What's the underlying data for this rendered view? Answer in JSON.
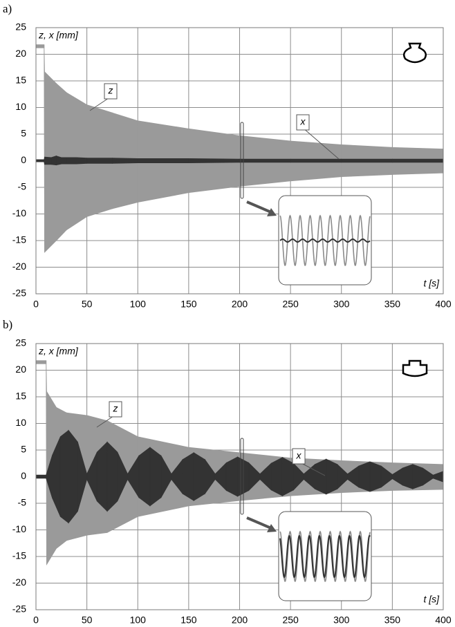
{
  "chart_data": [
    {
      "type": "range",
      "label": "a)",
      "ylabel": "z, x [mm]",
      "xlabel": "t [s]",
      "xlim": [
        0,
        400
      ],
      "xticks": [
        0,
        50,
        100,
        150,
        200,
        250,
        300,
        350,
        400
      ],
      "ylim": [
        -25,
        25
      ],
      "yticks": [
        -25,
        -20,
        -15,
        -10,
        -5,
        0,
        5,
        10,
        15,
        20,
        25
      ],
      "grid": true,
      "series": [
        {
          "name": "z",
          "color": "#9a9a9a",
          "x": [
            0,
            8,
            8.5,
            20,
            30,
            50,
            75,
            100,
            150,
            200,
            250,
            300,
            350,
            400
          ],
          "high": [
            21.8,
            21.8,
            16.7,
            14.5,
            12.8,
            10.5,
            9,
            7.5,
            6,
            4.7,
            3.7,
            3,
            2.5,
            2.2
          ],
          "low": [
            21.2,
            21.2,
            -17.2,
            -15,
            -13,
            -10.5,
            -9,
            -7.8,
            -6,
            -4.8,
            -3.8,
            -3,
            -2.6,
            -2.3
          ]
        },
        {
          "name": "x",
          "color": "#333333",
          "x": [
            0,
            8,
            8.5,
            15,
            20,
            25,
            30,
            40,
            50,
            75,
            100,
            150,
            200,
            250,
            300,
            350,
            400
          ],
          "high": [
            0.2,
            0.2,
            0.7,
            0.6,
            0.9,
            0.6,
            0.6,
            0.6,
            0.5,
            0.5,
            0.4,
            0.4,
            0.3,
            0.3,
            0.3,
            0.3,
            0.3
          ],
          "low": [
            -0.2,
            -0.2,
            -0.7,
            -0.7,
            -0.8,
            -0.6,
            -0.6,
            -0.6,
            -0.5,
            -0.5,
            -0.4,
            -0.4,
            -0.3,
            -0.3,
            -0.3,
            -0.3,
            -0.3
          ]
        }
      ]
    },
    {
      "type": "range",
      "label": "b)",
      "ylabel": "z, x [mm]",
      "xlabel": "t [s]",
      "xlim": [
        0,
        400
      ],
      "xticks": [
        0,
        50,
        100,
        150,
        200,
        250,
        300,
        350,
        400
      ],
      "ylim": [
        -25,
        25
      ],
      "yticks": [
        -25,
        -20,
        -15,
        -10,
        -5,
        0,
        5,
        10,
        15,
        20,
        25
      ],
      "grid": true,
      "series": [
        {
          "name": "z",
          "color": "#9a9a9a",
          "x": [
            0,
            10,
            10.5,
            20,
            30,
            50,
            70,
            100,
            150,
            200,
            250,
            300,
            350,
            400
          ],
          "high": [
            21.8,
            21.8,
            16,
            13,
            12,
            11.5,
            10.5,
            7.5,
            5.5,
            4.5,
            3.5,
            3,
            2.6,
            2.3
          ],
          "low": [
            21.2,
            21.2,
            -16.5,
            -13.5,
            -12,
            -11,
            -10.5,
            -7.5,
            -5.5,
            -4.5,
            -3.6,
            -3,
            -2.6,
            -2.4
          ]
        },
        {
          "name": "x",
          "color": "#333333",
          "x": [
            0,
            10,
            16,
            24,
            32,
            41,
            50,
            60,
            70,
            80,
            90,
            101,
            112,
            123,
            133,
            144,
            155,
            166,
            176,
            187,
            198,
            209,
            220,
            231,
            242,
            253,
            263,
            274,
            285,
            296,
            306,
            317,
            328,
            339,
            350,
            360,
            370,
            380,
            390,
            400
          ],
          "high": [
            0.3,
            0.3,
            4,
            7.5,
            8.7,
            6.5,
            0.5,
            4.6,
            6.5,
            4.6,
            0.5,
            3.9,
            5.5,
            3.9,
            0.5,
            3.2,
            4.5,
            3.2,
            0.5,
            2.6,
            3.7,
            2.6,
            0.5,
            2.5,
            3.6,
            2.5,
            0.5,
            2.3,
            3.3,
            2.3,
            0.5,
            2,
            2.8,
            2,
            0.4,
            1.6,
            2.3,
            1.6,
            0.3,
            1
          ],
          "low": [
            -0.3,
            -0.3,
            -4,
            -7.5,
            -8.7,
            -6.5,
            -0.5,
            -4.6,
            -6.5,
            -4.6,
            -0.5,
            -3.9,
            -5.5,
            -3.9,
            -0.5,
            -3.2,
            -4.5,
            -3.2,
            -0.5,
            -2.6,
            -3.7,
            -2.6,
            -0.5,
            -2.5,
            -3.6,
            -2.5,
            -0.5,
            -2.3,
            -3.3,
            -2.3,
            -0.5,
            -2,
            -2.8,
            -2,
            -0.4,
            -1.6,
            -2.3,
            -1.6,
            -0.3,
            -1
          ]
        }
      ]
    }
  ]
}
